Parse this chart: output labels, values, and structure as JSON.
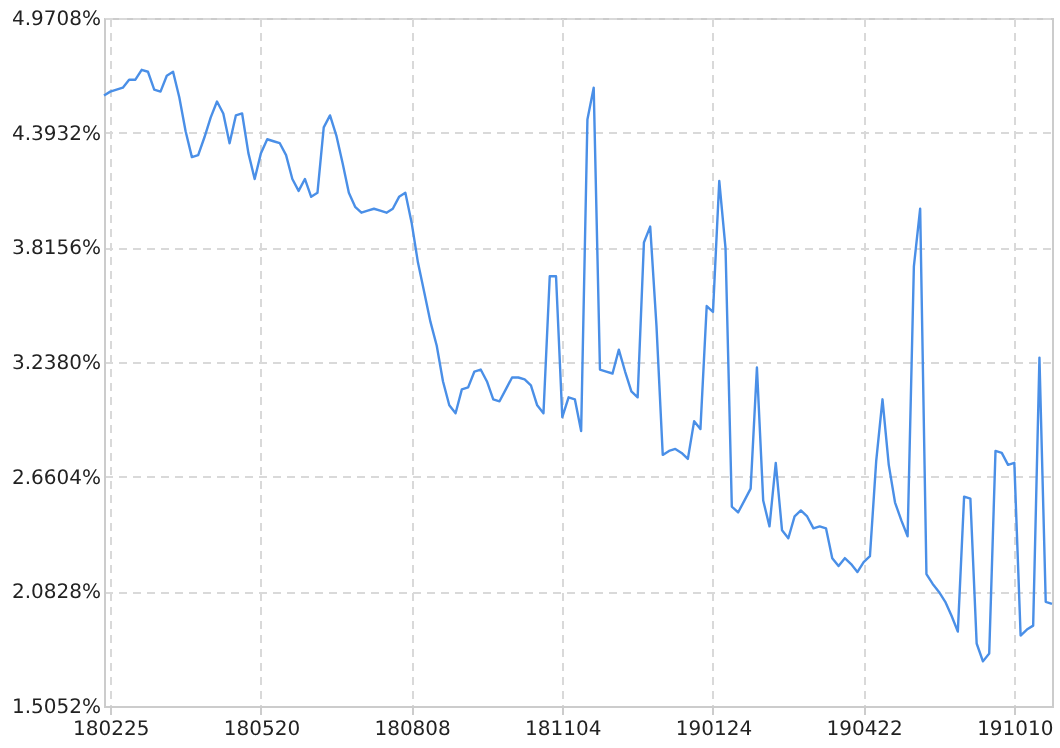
{
  "chart_data": {
    "type": "line",
    "categories": [
      null,
      "180225",
      null,
      null,
      null,
      null,
      null,
      null,
      null,
      null,
      null,
      null,
      null,
      null,
      null,
      null,
      null,
      null,
      null,
      null,
      null,
      null,
      null,
      null,
      null,
      "180520",
      null,
      null,
      null,
      null,
      null,
      null,
      null,
      null,
      null,
      null,
      null,
      null,
      null,
      null,
      null,
      null,
      null,
      null,
      null,
      null,
      null,
      null,
      null,
      "180808",
      null,
      null,
      null,
      null,
      null,
      null,
      null,
      null,
      null,
      null,
      null,
      null,
      null,
      null,
      null,
      null,
      null,
      null,
      null,
      null,
      null,
      null,
      null,
      "181104",
      null,
      null,
      null,
      null,
      null,
      null,
      null,
      null,
      null,
      null,
      null,
      null,
      null,
      null,
      null,
      null,
      null,
      null,
      null,
      null,
      null,
      null,
      null,
      "190124",
      null,
      null,
      null,
      null,
      null,
      null,
      null,
      null,
      null,
      null,
      null,
      null,
      null,
      null,
      null,
      null,
      null,
      null,
      null,
      null,
      null,
      null,
      null,
      "190422",
      null,
      null,
      null,
      null,
      null,
      null,
      null,
      null,
      null,
      null,
      null,
      null,
      null,
      null,
      null,
      null,
      null,
      null,
      null,
      null,
      null,
      null,
      null,
      "191010",
      null,
      null,
      null,
      null,
      null,
      null
    ],
    "series": [
      {
        "color": "#4a8fe7",
        "values": [
          4.58,
          4.6,
          4.61,
          4.62,
          4.66,
          4.66,
          4.71,
          4.7,
          4.61,
          4.6,
          4.68,
          4.7,
          4.57,
          4.4,
          4.27,
          4.28,
          4.37,
          4.47,
          4.55,
          4.49,
          4.34,
          4.48,
          4.49,
          4.29,
          4.16,
          4.29,
          4.36,
          4.35,
          4.34,
          4.28,
          4.16,
          4.1,
          4.16,
          4.07,
          4.09,
          4.42,
          4.48,
          4.38,
          4.24,
          4.09,
          4.02,
          3.99,
          4.0,
          4.01,
          4.0,
          3.99,
          4.01,
          4.07,
          4.09,
          3.94,
          3.74,
          3.59,
          3.44,
          3.32,
          3.14,
          3.02,
          2.98,
          3.1,
          3.11,
          3.19,
          3.2,
          3.14,
          3.05,
          3.04,
          3.1,
          3.16,
          3.16,
          3.15,
          3.12,
          3.02,
          2.98,
          3.67,
          3.67,
          2.96,
          3.06,
          3.05,
          2.89,
          4.46,
          4.62,
          3.2,
          3.19,
          3.18,
          3.3,
          3.19,
          3.09,
          3.06,
          3.84,
          3.92,
          3.42,
          2.77,
          2.79,
          2.8,
          2.78,
          2.75,
          2.94,
          2.9,
          3.52,
          3.49,
          4.15,
          3.81,
          2.51,
          2.48,
          2.54,
          2.6,
          3.21,
          2.54,
          2.41,
          2.73,
          2.39,
          2.35,
          2.46,
          2.49,
          2.46,
          2.4,
          2.41,
          2.4,
          2.25,
          2.21,
          2.25,
          2.22,
          2.18,
          2.23,
          2.26,
          2.74,
          3.05,
          2.72,
          2.53,
          2.44,
          2.36,
          3.72,
          4.01,
          2.17,
          2.12,
          2.08,
          2.03,
          1.96,
          1.88,
          2.56,
          2.55,
          1.82,
          1.73,
          1.77,
          2.79,
          2.78,
          2.72,
          2.73,
          1.86,
          1.89,
          1.91,
          3.26,
          2.03,
          2.02
        ]
      }
    ],
    "ylim": [
      1.5052,
      4.9708
    ],
    "yticks": [
      {
        "value": 1.5052,
        "label": "1.5052%"
      },
      {
        "value": 2.0828,
        "label": "2.0828%"
      },
      {
        "value": 2.6604,
        "label": "2.6604%"
      },
      {
        "value": 3.238,
        "label": "3.2380%"
      },
      {
        "value": 3.8156,
        "label": "3.8156%"
      },
      {
        "value": 4.3932,
        "label": "4.3932%"
      },
      {
        "value": 4.9708,
        "label": "4.9708%"
      }
    ],
    "grid": true,
    "line_style": "solid",
    "marker": "none"
  }
}
